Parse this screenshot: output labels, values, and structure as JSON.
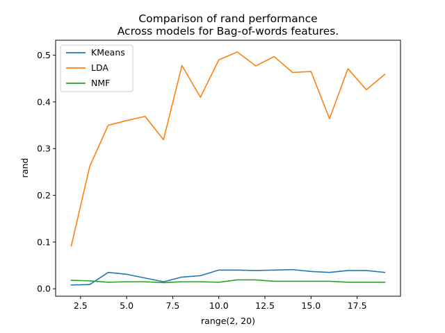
{
  "chart_data": {
    "type": "line",
    "title": "Comparison of rand performance",
    "subtitle": "Across models for Bag-of-words features.",
    "xlabel": "range(2, 20)",
    "ylabel": "rand",
    "xlim": [
      1.15,
      19.85
    ],
    "ylim": [
      -0.016,
      0.532
    ],
    "xticks": [
      2.5,
      5.0,
      7.5,
      10.0,
      12.5,
      15.0,
      17.5
    ],
    "xtick_labels": [
      "2.5",
      "5.0",
      "7.5",
      "10.0",
      "12.5",
      "15.0",
      "17.5"
    ],
    "yticks": [
      0.0,
      0.1,
      0.2,
      0.3,
      0.4,
      0.5
    ],
    "ytick_labels": [
      "0.0",
      "0.1",
      "0.2",
      "0.3",
      "0.4",
      "0.5"
    ],
    "grid": false,
    "legend_position": "top-left",
    "x": [
      2,
      3,
      4,
      5,
      6,
      7,
      8,
      9,
      10,
      11,
      12,
      13,
      14,
      15,
      16,
      17,
      18,
      19
    ],
    "series": [
      {
        "name": "KMeans",
        "color": "#1f77b4",
        "values": [
          0.008,
          0.009,
          0.035,
          0.031,
          0.023,
          0.015,
          0.025,
          0.028,
          0.04,
          0.04,
          0.039,
          0.04,
          0.041,
          0.037,
          0.035,
          0.039,
          0.039,
          0.035
        ]
      },
      {
        "name": "LDA",
        "color": "#ff7f0e",
        "values": [
          0.092,
          0.262,
          0.35,
          0.36,
          0.369,
          0.319,
          0.478,
          0.41,
          0.49,
          0.507,
          0.477,
          0.497,
          0.463,
          0.465,
          0.364,
          0.471,
          0.426,
          0.459
        ]
      },
      {
        "name": "NMF",
        "color": "#2ca02c",
        "values": [
          0.018,
          0.017,
          0.014,
          0.015,
          0.015,
          0.013,
          0.015,
          0.015,
          0.014,
          0.019,
          0.019,
          0.016,
          0.016,
          0.016,
          0.016,
          0.014,
          0.014,
          0.014
        ]
      }
    ]
  }
}
